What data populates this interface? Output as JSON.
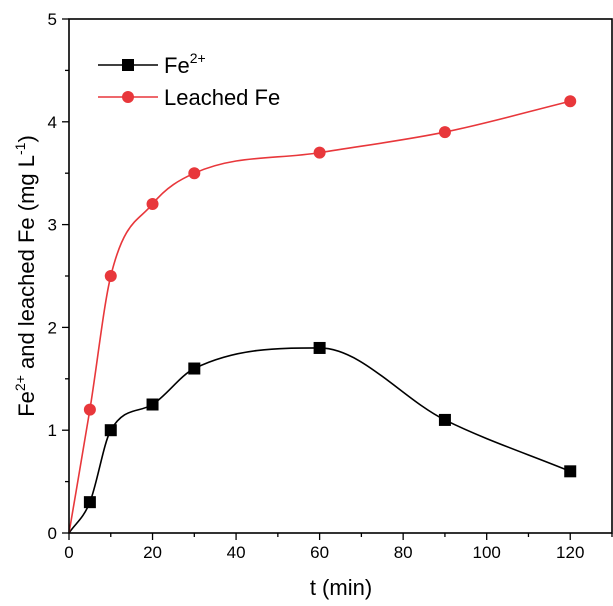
{
  "chart_data": {
    "type": "scatter",
    "xlabel": "t (min)",
    "ylabel": {
      "pre": "Fe",
      "sup1": "2+",
      "mid": " and leached Fe (mg L",
      "sup2": "-1",
      "post": ")"
    },
    "xlim": [
      0,
      130
    ],
    "ylim": [
      0,
      5
    ],
    "x_ticks": [
      0,
      20,
      40,
      60,
      80,
      100,
      120
    ],
    "y_ticks": [
      0,
      1,
      2,
      3,
      4,
      5
    ],
    "grid": false,
    "legend_position": "top-left",
    "series": [
      {
        "name_base": "Fe",
        "name_sup": "2+",
        "color": "#000000",
        "marker": "square",
        "x": [
          0,
          5,
          10,
          20,
          30,
          60,
          90,
          120
        ],
        "y": [
          0,
          0.3,
          1.0,
          1.25,
          1.6,
          1.8,
          1.1,
          0.6
        ]
      },
      {
        "name_base": "Leached Fe",
        "name_sup": "",
        "color": "#e8373b",
        "marker": "circle",
        "x": [
          0,
          5,
          10,
          20,
          30,
          60,
          90,
          120
        ],
        "y": [
          0,
          1.2,
          2.5,
          3.2,
          3.5,
          3.7,
          3.9,
          4.2
        ]
      }
    ]
  }
}
